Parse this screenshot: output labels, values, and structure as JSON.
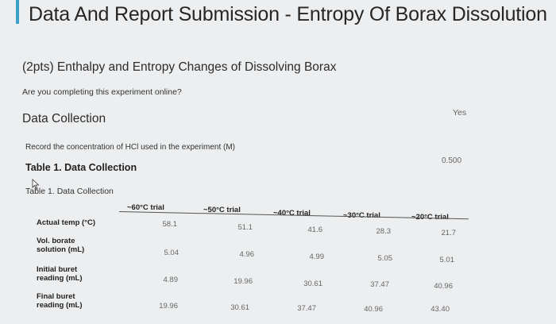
{
  "header": {
    "title": "Data And Report Submission - Entropy Of Borax Dissolution"
  },
  "section": {
    "heading": "(2pts) Enthalpy and Entropy Changes of Dissolving Borax",
    "online_question": "Are you completing this experiment online?",
    "online_answer": "Yes"
  },
  "data_collection": {
    "heading": "Data Collection",
    "concentration_label": "Record the concentration of HCl used in the experiment (M)",
    "concentration_value": "0.500",
    "table_title": "Table 1. Data Collection",
    "table_caption": "Table 1. Data Collection"
  },
  "table": {
    "columns": [
      "~60°C trial",
      "~50°C trial",
      "~40°C trial",
      "~30°C trial",
      "~20°C trial"
    ],
    "rows": [
      {
        "label_line1": "Actual temp (°C)",
        "label_line2": "",
        "values": [
          "58.1",
          "51.1",
          "41.6",
          "28.3",
          "21.7"
        ]
      },
      {
        "label_line1": "Vol. borate",
        "label_line2": "solution (mL)",
        "values": [
          "5.04",
          "4.96",
          "4.99",
          "5.05",
          "5.01"
        ]
      },
      {
        "label_line1": "Initial buret",
        "label_line2": "reading (mL)",
        "values": [
          "4.89",
          "19.96",
          "30.61",
          "37.47",
          "40.96"
        ]
      },
      {
        "label_line1": "Final buret",
        "label_line2": "reading (mL)",
        "values": [
          "19.96",
          "30.61",
          "37.47",
          "40.96",
          "43.40"
        ]
      }
    ]
  },
  "colors": {
    "accent": "#3aa0c8",
    "background": "#eceef0"
  }
}
